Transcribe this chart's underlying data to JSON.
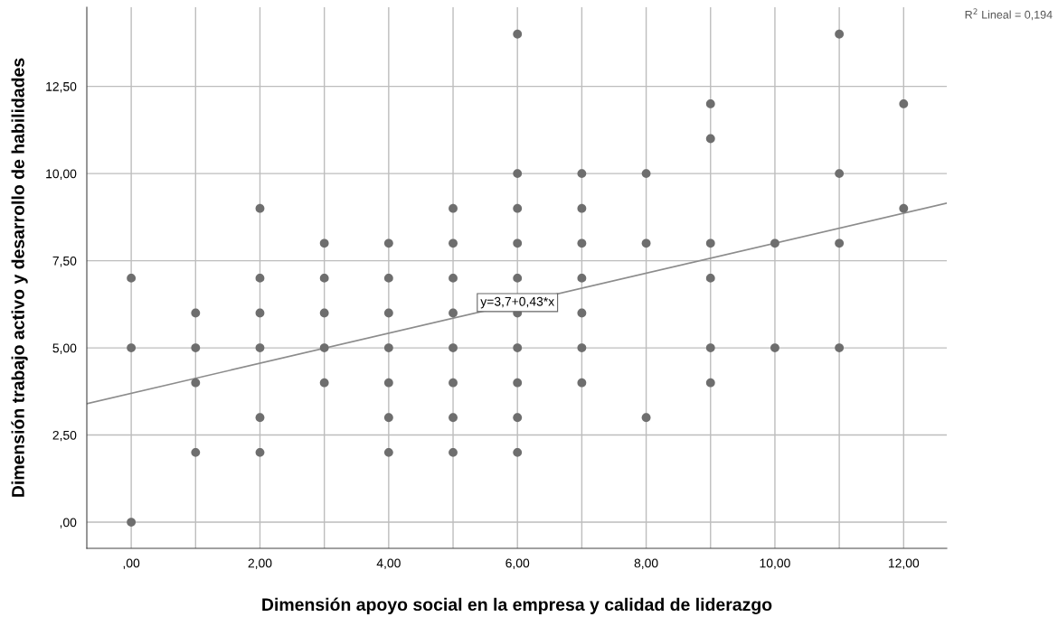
{
  "chart_data": {
    "type": "scatter",
    "xlabel": "Dimensión apoyo social en la empresa y calidad de liderazgo",
    "ylabel": "Dimensión trabajo activo y desarrollo de habilidades",
    "xlim": [
      -0.69,
      12.67
    ],
    "ylim": [
      -0.75,
      14.77
    ],
    "xticks": [
      {
        "value": 0,
        "label": ",00"
      },
      {
        "value": 1,
        "label": null
      },
      {
        "value": 2,
        "label": "2,00"
      },
      {
        "value": 3,
        "label": null
      },
      {
        "value": 4,
        "label": "4,00"
      },
      {
        "value": 5,
        "label": null
      },
      {
        "value": 6,
        "label": "6,00"
      },
      {
        "value": 7,
        "label": null
      },
      {
        "value": 8,
        "label": "8,00"
      },
      {
        "value": 9,
        "label": null
      },
      {
        "value": 10,
        "label": "10,00"
      },
      {
        "value": 11,
        "label": null
      },
      {
        "value": 12,
        "label": "12,00"
      }
    ],
    "yticks": [
      {
        "value": 0,
        "label": ",00"
      },
      {
        "value": 2.5,
        "label": "2,50"
      },
      {
        "value": 5,
        "label": "5,00"
      },
      {
        "value": 7.5,
        "label": "7,50"
      },
      {
        "value": 10,
        "label": "10,00"
      },
      {
        "value": 12.5,
        "label": "12,50"
      }
    ],
    "grid": true,
    "series": [
      {
        "color": "#6e6e6e",
        "marker": "circle",
        "x": [
          0,
          0,
          0,
          1,
          1,
          1,
          1,
          2,
          2,
          2,
          2,
          2,
          2,
          3,
          3,
          3,
          3,
          3,
          4,
          4,
          4,
          4,
          4,
          4,
          4,
          5,
          5,
          5,
          5,
          5,
          5,
          5,
          5,
          6,
          6,
          6,
          6,
          6,
          6,
          6,
          6,
          6,
          6,
          7,
          7,
          7,
          7,
          7,
          7,
          7,
          8,
          8,
          8,
          9,
          9,
          9,
          9,
          9,
          9,
          10,
          10,
          11,
          11,
          11,
          11,
          12,
          12
        ],
        "values": [
          7,
          5,
          0,
          6,
          5,
          4,
          2,
          9,
          7,
          6,
          5,
          3,
          2,
          8,
          7,
          6,
          5,
          4,
          8,
          7,
          6,
          5,
          4,
          3,
          2,
          9,
          8,
          7,
          6,
          5,
          4,
          3,
          2,
          14,
          10,
          9,
          8,
          7,
          6,
          5,
          4,
          3,
          2,
          10,
          9,
          8,
          7,
          6,
          5,
          4,
          10,
          8,
          3,
          12,
          11,
          8,
          7,
          5,
          4,
          8,
          5,
          14,
          10,
          8,
          5,
          12,
          9
        ]
      },
      {
        "type": "line",
        "color": "#8c8c8c",
        "line_style": "solid",
        "x": [
          -0.69,
          12.67
        ],
        "values": [
          3.4,
          9.15
        ]
      }
    ],
    "annotations": [
      {
        "text": "y=3,7+0,43*x",
        "x": 6,
        "y": 6.3
      },
      "R$^{2}$ Lineal = 0,194"
    ]
  }
}
